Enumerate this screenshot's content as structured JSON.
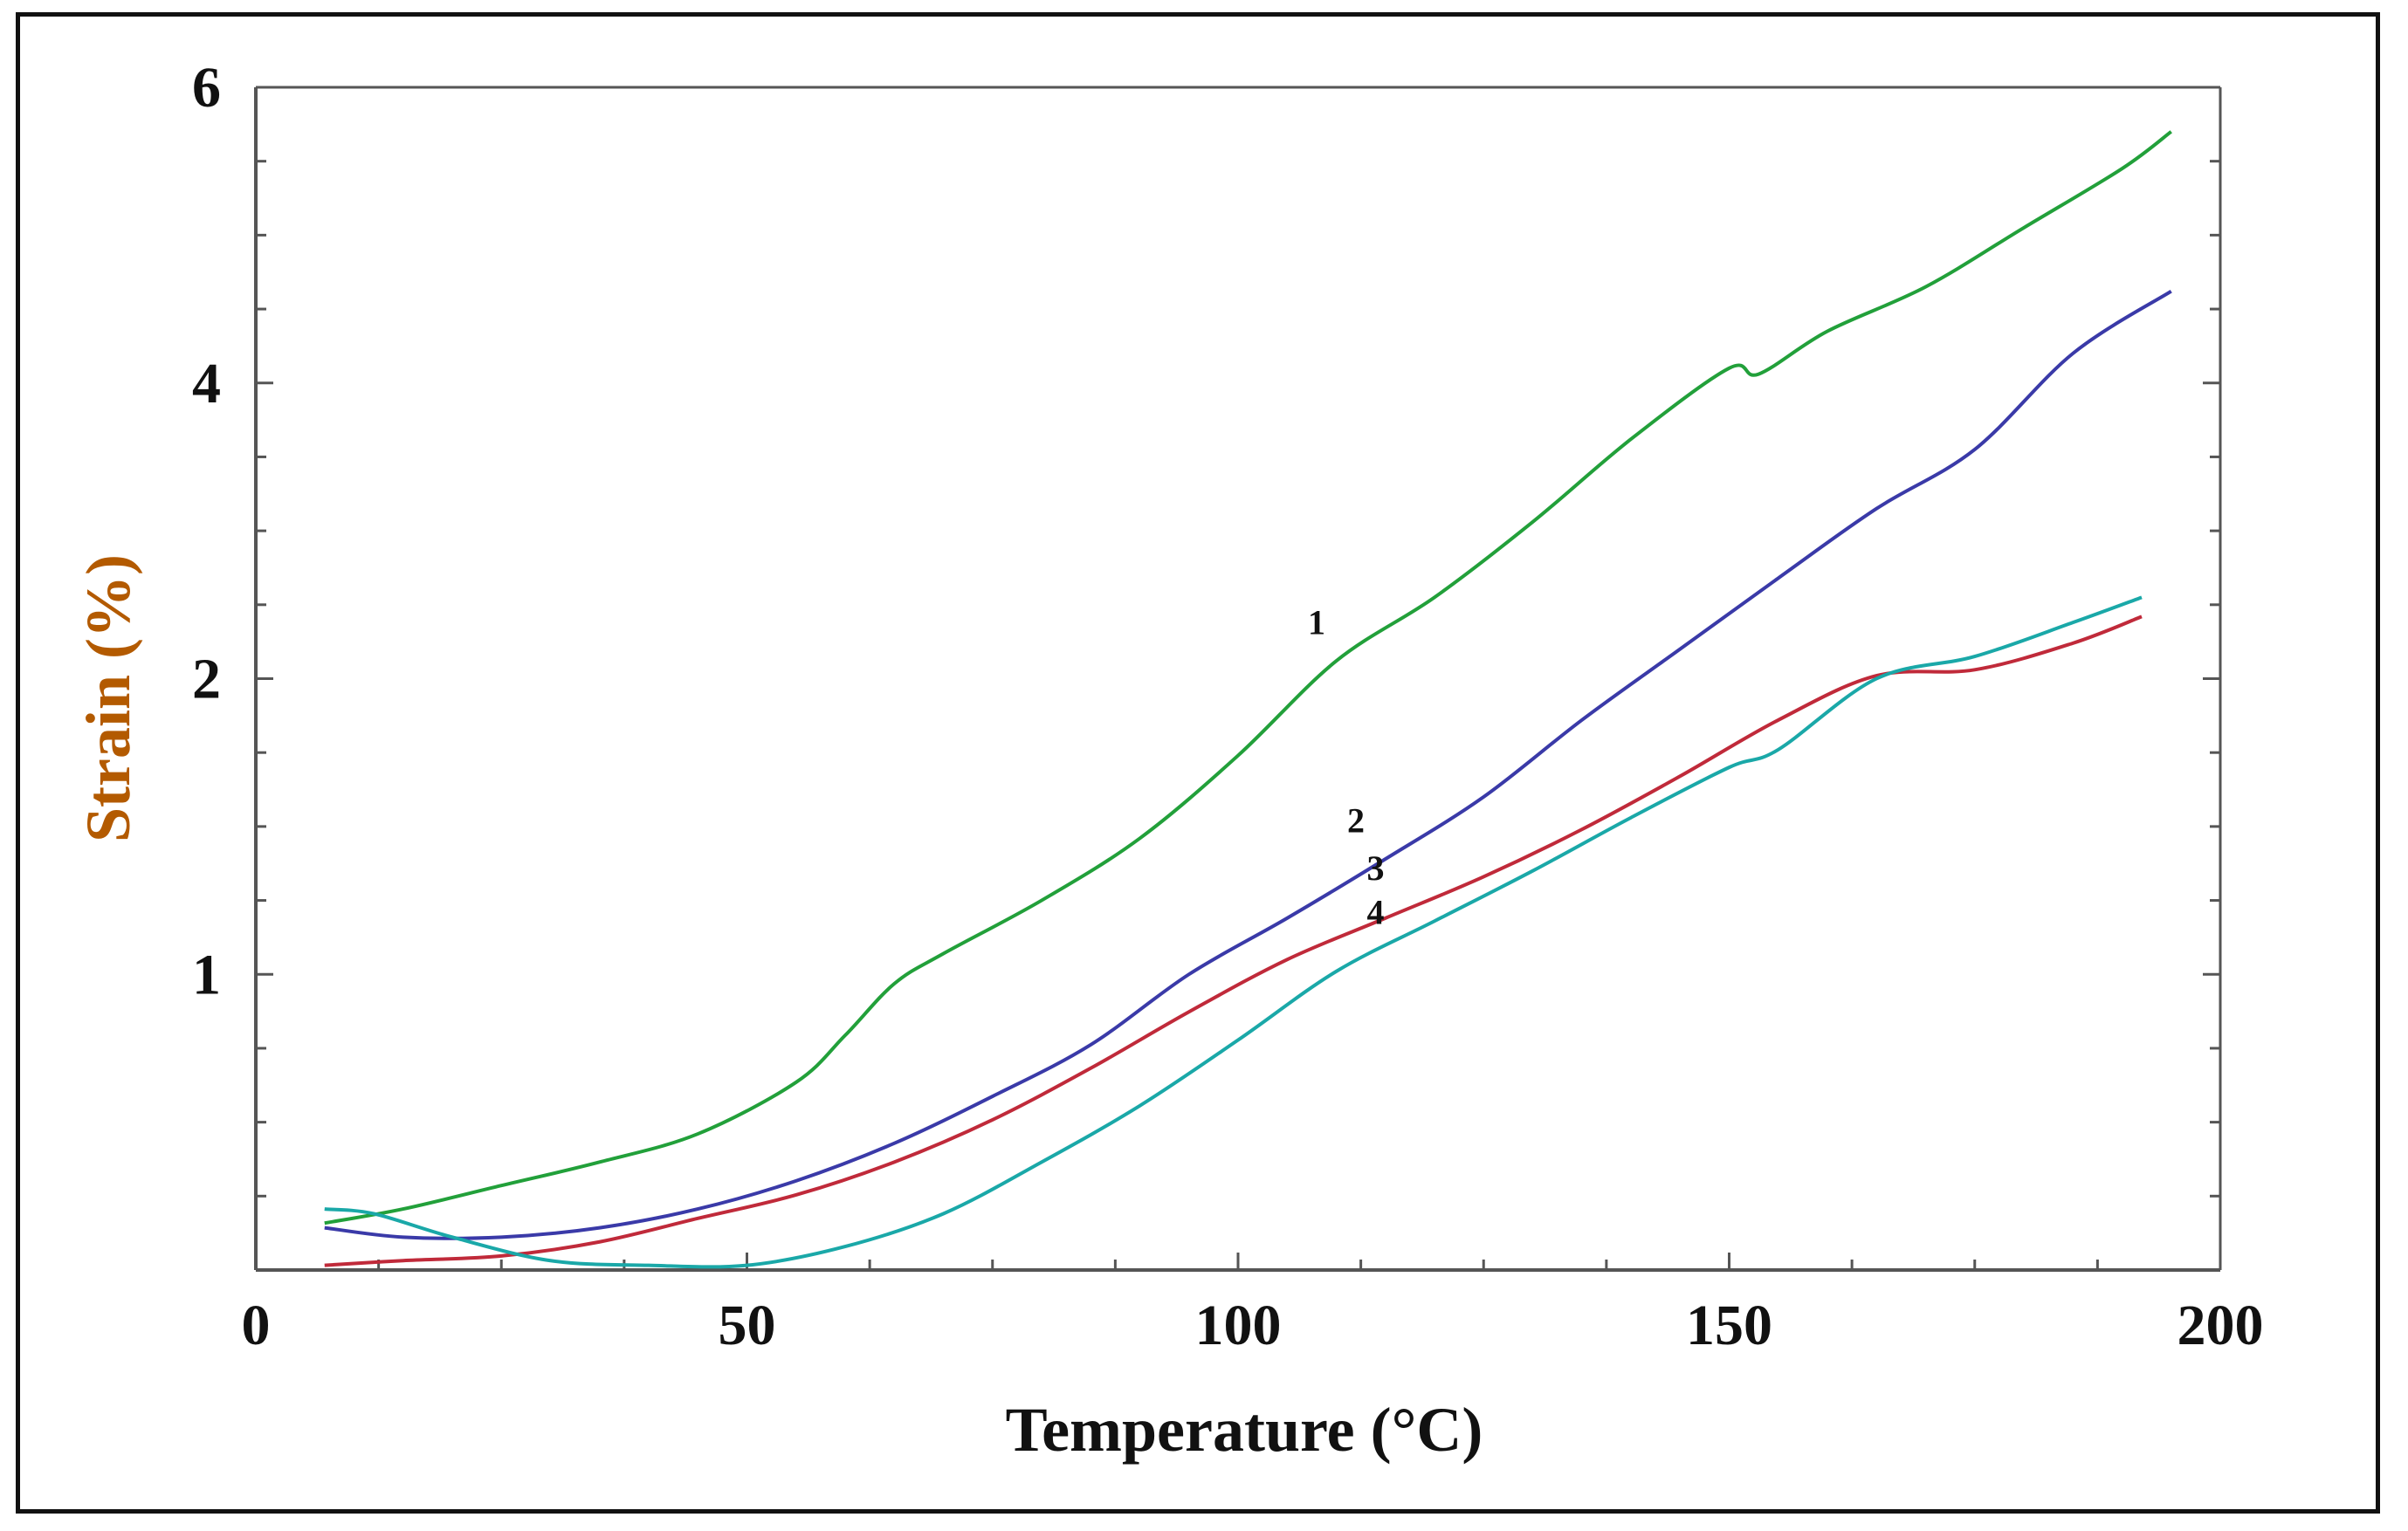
{
  "chart_data": {
    "type": "line",
    "title": "",
    "xlabel": "Temperature (°C)",
    "ylabel": "Strain (%)",
    "xlim": [
      0,
      200
    ],
    "x_ticks": [
      0,
      50,
      100,
      150,
      200
    ],
    "x_tick_labels": [
      "0",
      "50",
      "100",
      "150",
      "200"
    ],
    "y_tick_labels": [
      "1",
      "2",
      "4",
      "6"
    ],
    "y_tick_positions_note": "non-linear axis: labels 1,2,4,6 placed at equal spacing with baseline below 1",
    "y_axis_map": [
      [
        0.37,
        0
      ],
      [
        1,
        1
      ],
      [
        2,
        2
      ],
      [
        4,
        3
      ],
      [
        6,
        4
      ]
    ],
    "grid": false,
    "colors": {
      "series_1": "#22a03a",
      "series_2": "#3a3aa8",
      "series_3": "#c02a3a",
      "series_4": "#1aa8a8",
      "axis": "#555555",
      "label_y": "#b35a00",
      "text": "#111111"
    },
    "series": [
      {
        "name": "1",
        "label": "1",
        "color": "#22a03a",
        "x": [
          7,
          15,
          25,
          35,
          45,
          55,
          60,
          65,
          70,
          80,
          90,
          100,
          110,
          120,
          130,
          140,
          150,
          153,
          160,
          170,
          180,
          190,
          195
        ],
        "y": [
          0.47,
          0.5,
          0.55,
          0.6,
          0.66,
          0.77,
          0.87,
          0.98,
          1.07,
          1.25,
          1.46,
          1.74,
          2.12,
          2.55,
          3.06,
          3.62,
          4.1,
          4.06,
          4.35,
          4.65,
          5.05,
          5.45,
          5.7
        ]
      },
      {
        "name": "2",
        "label": "2",
        "color": "#3a3aa8",
        "x": [
          7,
          15,
          25,
          35,
          45,
          55,
          65,
          75,
          85,
          95,
          105,
          115,
          125,
          135,
          145,
          155,
          165,
          175,
          185,
          195
        ],
        "y": [
          0.46,
          0.44,
          0.44,
          0.46,
          0.5,
          0.56,
          0.64,
          0.74,
          0.85,
          1.0,
          1.19,
          1.39,
          1.6,
          1.86,
          2.2,
          2.68,
          3.15,
          3.55,
          4.2,
          4.62
        ]
      },
      {
        "name": "3",
        "label": "3",
        "color": "#c02a3a",
        "x": [
          7,
          15,
          25,
          35,
          45,
          55,
          65,
          75,
          85,
          95,
          105,
          115,
          125,
          135,
          145,
          155,
          165,
          175,
          185,
          192
        ],
        "y": [
          0.38,
          0.39,
          0.4,
          0.43,
          0.48,
          0.53,
          0.6,
          0.69,
          0.8,
          0.92,
          1.05,
          1.19,
          1.33,
          1.49,
          1.67,
          1.86,
          2.02,
          2.06,
          2.24,
          2.42
        ]
      },
      {
        "name": "4",
        "label": "4",
        "color": "#1aa8a8",
        "x": [
          7,
          12,
          20,
          30,
          40,
          50,
          60,
          70,
          80,
          90,
          100,
          110,
          120,
          130,
          140,
          150,
          155,
          165,
          175,
          185,
          192
        ],
        "y": [
          0.5,
          0.49,
          0.44,
          0.39,
          0.38,
          0.38,
          0.42,
          0.49,
          0.6,
          0.72,
          0.86,
          1.01,
          1.18,
          1.35,
          1.53,
          1.7,
          1.76,
          2.0,
          2.15,
          2.38,
          2.55
        ]
      }
    ],
    "annotations": [
      {
        "text": "1",
        "x": 108,
        "y": 2.3
      },
      {
        "text": "2",
        "x": 112,
        "y": 1.48
      },
      {
        "text": "3",
        "x": 114,
        "y": 1.32
      },
      {
        "text": "4",
        "x": 114,
        "y": 1.17
      }
    ]
  }
}
